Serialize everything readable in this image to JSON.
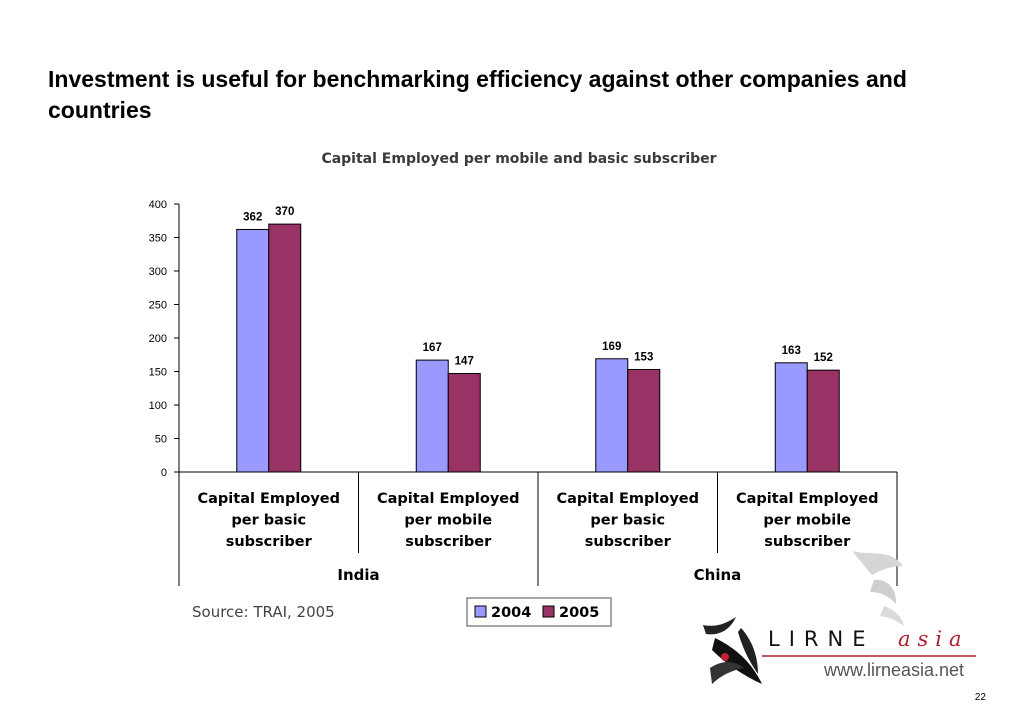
{
  "slide": {
    "title": "Investment is useful for benchmarking efficiency against other companies and countries",
    "page_number": "22"
  },
  "chart_data": {
    "type": "bar",
    "title": "Capital Employed per mobile and basic subscriber",
    "xlabel": "",
    "ylabel": "",
    "ylim": [
      0,
      400
    ],
    "yticks": [
      0,
      50,
      100,
      150,
      200,
      250,
      300,
      350,
      400
    ],
    "grid": false,
    "legend_position": "bottom",
    "categories": [
      [
        "Capital Employed",
        "per basic",
        "subscriber"
      ],
      [
        "Capital Employed",
        "per mobile",
        "subscriber"
      ],
      [
        "Capital Employed",
        "per basic",
        "subscriber"
      ],
      [
        "Capital Employed",
        "per mobile",
        "subscriber"
      ]
    ],
    "groups": [
      {
        "label": "India",
        "span": [
          0,
          1
        ]
      },
      {
        "label": "China",
        "span": [
          2,
          3
        ]
      }
    ],
    "series": [
      {
        "name": "2004",
        "color": "#9999ff",
        "values": [
          362,
          167,
          169,
          163
        ]
      },
      {
        "name": "2005",
        "color": "#993366",
        "values": [
          370,
          147,
          153,
          152
        ]
      }
    ],
    "source": "Source: TRAI, 2005"
  },
  "logo": {
    "wordmark": "LIRNE",
    "wordmark_suffix": "asia",
    "url": "www.lirneasia.net",
    "accent_color": "#b02030"
  }
}
